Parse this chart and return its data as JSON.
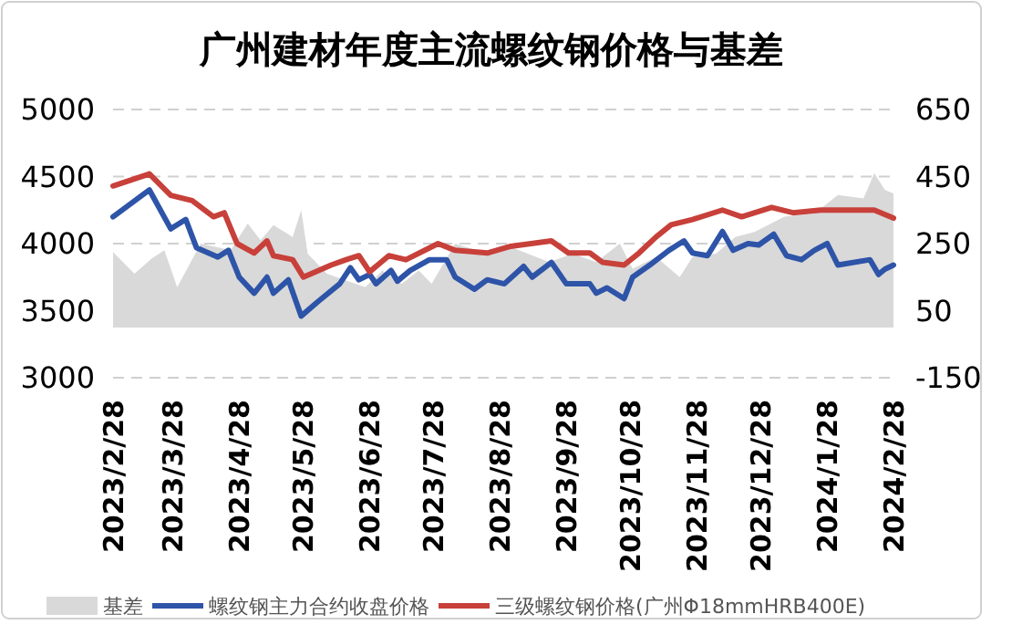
{
  "chart_data": {
    "type": "line",
    "title": "广州建材年度主流螺纹钢价格与基差",
    "xlim": [
      "2023-02-28",
      "2024-02-28"
    ],
    "xticks": [
      {
        "value": "2023-02-28",
        "label": "2023/2/28"
      },
      {
        "value": "2023-03-28",
        "label": "2023/3/28"
      },
      {
        "value": "2023-04-28",
        "label": "2023/4/28"
      },
      {
        "value": "2023-05-28",
        "label": "2023/5/28"
      },
      {
        "value": "2023-06-28",
        "label": "2023/6/28"
      },
      {
        "value": "2023-07-28",
        "label": "2023/7/28"
      },
      {
        "value": "2023-08-28",
        "label": "2023/8/28"
      },
      {
        "value": "2023-09-28",
        "label": "2023/9/28"
      },
      {
        "value": "2023-10-28",
        "label": "2023/10/28"
      },
      {
        "value": "2023-11-28",
        "label": "2023/11/28"
      },
      {
        "value": "2023-12-28",
        "label": "2023/12/28"
      },
      {
        "value": "2024-01-28",
        "label": "2024/1/28"
      },
      {
        "value": "2024-02-28",
        "label": "2024/2/28"
      }
    ],
    "ylim": [
      3000,
      5000
    ],
    "yticks": [
      3000,
      3500,
      4000,
      4500,
      5000
    ],
    "y2lim": [
      -150,
      650
    ],
    "y2ticks": [
      -150,
      50,
      250,
      450,
      650
    ],
    "grid": "y",
    "legend": "bottom",
    "series": [
      {
        "name": "基差",
        "type": "area",
        "axis": "y2",
        "color": "#d9d9d9",
        "x": [
          "2023-02-28",
          "2023-03-10",
          "2023-03-18",
          "2023-03-24",
          "2023-03-30",
          "2023-04-10",
          "2023-04-24",
          "2023-05-02",
          "2023-05-08",
          "2023-05-14",
          "2023-05-23",
          "2023-05-27",
          "2023-05-30",
          "2023-06-08",
          "2023-06-17",
          "2023-06-26",
          "2023-07-04",
          "2023-07-13",
          "2023-07-21",
          "2023-07-27",
          "2023-08-07",
          "2023-08-22",
          "2023-09-02",
          "2023-09-20",
          "2023-10-01",
          "2023-10-12",
          "2023-10-23",
          "2023-10-29",
          "2023-11-09",
          "2023-11-20",
          "2023-11-26",
          "2023-12-07",
          "2023-12-16",
          "2023-12-25",
          "2024-01-08",
          "2024-01-22",
          "2024-02-02",
          "2024-02-14",
          "2024-02-19",
          "2024-02-24",
          "2024-02-28"
        ],
        "values": [
          225,
          160,
          205,
          230,
          120,
          250,
          230,
          310,
          260,
          305,
          270,
          350,
          220,
          160,
          140,
          120,
          170,
          130,
          170,
          130,
          250,
          220,
          240,
          195,
          220,
          195,
          250,
          175,
          210,
          150,
          210,
          220,
          270,
          285,
          330,
          340,
          395,
          385,
          460,
          410,
          400
        ]
      },
      {
        "name": "螺纹钢主力合约收盘价格",
        "type": "line",
        "color": "#2e54a8",
        "x": [
          "2023-02-28",
          "2023-03-17",
          "2023-03-27",
          "2023-04-03",
          "2023-04-08",
          "2023-04-18",
          "2023-04-23",
          "2023-04-28",
          "2023-05-05",
          "2023-05-11",
          "2023-05-14",
          "2023-05-21",
          "2023-05-27",
          "2023-06-04",
          "2023-06-14",
          "2023-06-19",
          "2023-06-23",
          "2023-06-28",
          "2023-07-01",
          "2023-07-08",
          "2023-07-11",
          "2023-07-17",
          "2023-07-26",
          "2023-08-03",
          "2023-08-07",
          "2023-08-16",
          "2023-08-22",
          "2023-08-30",
          "2023-09-08",
          "2023-09-12",
          "2023-09-21",
          "2023-09-28",
          "2023-10-09",
          "2023-10-12",
          "2023-10-17",
          "2023-10-25",
          "2023-10-29",
          "2023-11-06",
          "2023-11-15",
          "2023-11-22",
          "2023-11-26",
          "2023-12-03",
          "2023-12-10",
          "2023-12-15",
          "2023-12-22",
          "2023-12-27",
          "2024-01-03",
          "2024-01-09",
          "2024-01-16",
          "2024-01-22",
          "2024-01-28",
          "2024-02-02",
          "2024-02-17",
          "2024-02-21",
          "2024-02-24",
          "2024-02-28"
        ],
        "values": [
          4200,
          4400,
          4110,
          4180,
          3970,
          3900,
          3950,
          3750,
          3630,
          3750,
          3630,
          3730,
          3460,
          3570,
          3700,
          3820,
          3730,
          3770,
          3700,
          3800,
          3720,
          3800,
          3880,
          3880,
          3750,
          3660,
          3730,
          3700,
          3830,
          3750,
          3860,
          3700,
          3700,
          3630,
          3670,
          3590,
          3750,
          3840,
          3950,
          4020,
          3930,
          3910,
          4090,
          3950,
          4000,
          3990,
          4070,
          3910,
          3880,
          3950,
          4000,
          3840,
          3880,
          3770,
          3810,
          3840
        ]
      },
      {
        "name": "三级螺纹钢价格(广州Φ18mmHRB400E)",
        "type": "line",
        "color": "#c8403a",
        "x": [
          "2023-02-28",
          "2023-03-17",
          "2023-03-27",
          "2023-04-06",
          "2023-04-16",
          "2023-04-21",
          "2023-04-27",
          "2023-05-05",
          "2023-05-11",
          "2023-05-14",
          "2023-05-23",
          "2023-05-28",
          "2023-06-10",
          "2023-06-17",
          "2023-06-23",
          "2023-06-28",
          "2023-07-07",
          "2023-07-15",
          "2023-07-30",
          "2023-08-07",
          "2023-08-22",
          "2023-09-02",
          "2023-09-21",
          "2023-09-29",
          "2023-10-09",
          "2023-10-15",
          "2023-10-25",
          "2023-11-01",
          "2023-11-09",
          "2023-11-16",
          "2023-11-26",
          "2023-12-10",
          "2023-12-19",
          "2024-01-02",
          "2024-01-12",
          "2024-01-25",
          "2024-02-19",
          "2024-02-28"
        ],
        "values": [
          4430,
          4520,
          4360,
          4320,
          4200,
          4230,
          4000,
          3930,
          4020,
          3910,
          3880,
          3750,
          3840,
          3880,
          3910,
          3790,
          3910,
          3880,
          4000,
          3950,
          3930,
          3980,
          4020,
          3930,
          3930,
          3860,
          3840,
          3930,
          4050,
          4140,
          4180,
          4250,
          4200,
          4270,
          4230,
          4250,
          4250,
          4190
        ]
      }
    ]
  }
}
